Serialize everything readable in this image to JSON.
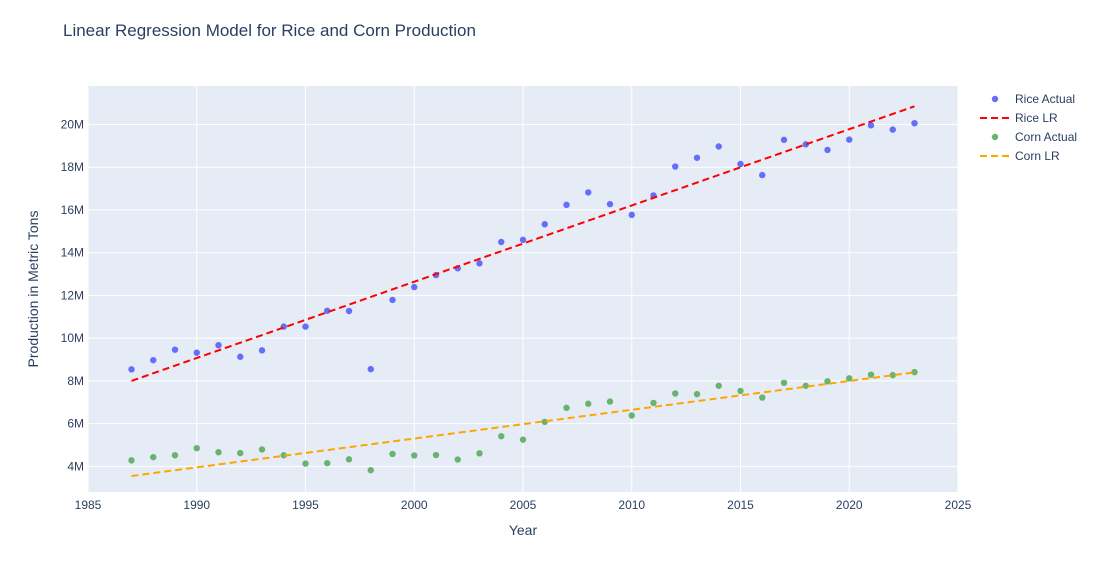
{
  "chart_data": {
    "type": "scatter",
    "title": "Linear Regression Model for Rice and Corn Production",
    "xlabel": "Year",
    "ylabel": "Production in Metric Tons",
    "xlim": [
      1985,
      2025
    ],
    "ylim": [
      2800000,
      21800000
    ],
    "x_ticks": [
      1985,
      1990,
      1995,
      2000,
      2005,
      2010,
      2015,
      2020,
      2025
    ],
    "x_tick_labels": [
      "1985",
      "1990",
      "1995",
      "2000",
      "2005",
      "2010",
      "2015",
      "2020",
      "2025"
    ],
    "y_ticks": [
      4000000,
      6000000,
      8000000,
      10000000,
      12000000,
      14000000,
      16000000,
      18000000,
      20000000
    ],
    "y_tick_labels": [
      "4M",
      "6M",
      "8M",
      "10M",
      "12M",
      "14M",
      "16M",
      "18M",
      "20M"
    ],
    "grid": true,
    "legend_position": "top-right",
    "colors": {
      "plot_bg": "#e5ecf6",
      "grid": "#ffffff",
      "text": "#2a3f5f"
    },
    "series": [
      {
        "name": "Rice Actual",
        "mode": "markers",
        "color": "#636efa",
        "x": [
          1987,
          1988,
          1989,
          1990,
          1991,
          1992,
          1993,
          1994,
          1995,
          1996,
          1997,
          1998,
          1999,
          2000,
          2001,
          2002,
          2003,
          2004,
          2005,
          2006,
          2007,
          2008,
          2009,
          2010,
          2011,
          2012,
          2013,
          2014,
          2015,
          2016,
          2017,
          2018,
          2019,
          2020,
          2021,
          2022,
          2023
        ],
        "y": [
          8540000,
          8970000,
          9460000,
          9320000,
          9670000,
          9130000,
          9430000,
          10540000,
          10540000,
          11280000,
          11270000,
          8550000,
          11790000,
          12390000,
          12950000,
          13270000,
          13500000,
          14500000,
          14600000,
          15330000,
          16240000,
          16820000,
          16270000,
          15770000,
          16680000,
          18030000,
          18440000,
          18970000,
          18150000,
          17630000,
          19280000,
          19070000,
          18810000,
          19290000,
          19960000,
          19760000,
          20060000
        ]
      },
      {
        "name": "Rice LR",
        "mode": "dashed-line",
        "color": "#ff0000",
        "x": [
          1987,
          2023
        ],
        "y": [
          8000000,
          20850000
        ]
      },
      {
        "name": "Corn Actual",
        "mode": "markers",
        "color": "#6ab26f",
        "x": [
          1987,
          1988,
          1989,
          1990,
          1991,
          1992,
          1993,
          1994,
          1995,
          1996,
          1997,
          1998,
          1999,
          2000,
          2001,
          2002,
          2003,
          2004,
          2005,
          2006,
          2007,
          2008,
          2009,
          2010,
          2011,
          2012,
          2013,
          2014,
          2015,
          2016,
          2017,
          2018,
          2019,
          2020,
          2021,
          2022,
          2023
        ],
        "y": [
          4280000,
          4430000,
          4520000,
          4850000,
          4660000,
          4620000,
          4790000,
          4520000,
          4130000,
          4150000,
          4330000,
          3820000,
          4580000,
          4510000,
          4530000,
          4320000,
          4610000,
          5410000,
          5250000,
          6080000,
          6740000,
          6930000,
          7030000,
          6380000,
          6970000,
          7410000,
          7380000,
          7770000,
          7530000,
          7220000,
          7910000,
          7770000,
          7980000,
          8120000,
          8290000,
          8270000,
          8410000
        ]
      },
      {
        "name": "Corn LR",
        "mode": "dashed-line",
        "color": "#ffa500",
        "x": [
          1987,
          2023
        ],
        "y": [
          3550000,
          8400000
        ]
      }
    ]
  }
}
